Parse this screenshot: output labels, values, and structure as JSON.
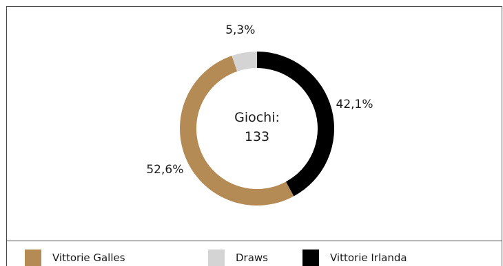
{
  "chart_data": {
    "type": "pie",
    "variant": "donut",
    "center_label": "Giochi:",
    "center_value": "133",
    "categories": [
      "Vittorie Galles",
      "Draws",
      "Vittorie Irlanda"
    ],
    "values": [
      52.6,
      5.3,
      42.1
    ],
    "value_labels": [
      "52,6%",
      "5,3%",
      "42,1%"
    ],
    "colors": [
      "#b58b55",
      "#d4d4d4",
      "#000000"
    ],
    "legend_position": "bottom"
  },
  "legend": {
    "items": [
      {
        "label": "Vittorie Galles",
        "color": "#b58b55"
      },
      {
        "label": "Draws",
        "color": "#d4d4d4"
      },
      {
        "label": "Vittorie Irlanda",
        "color": "#000000"
      }
    ]
  }
}
